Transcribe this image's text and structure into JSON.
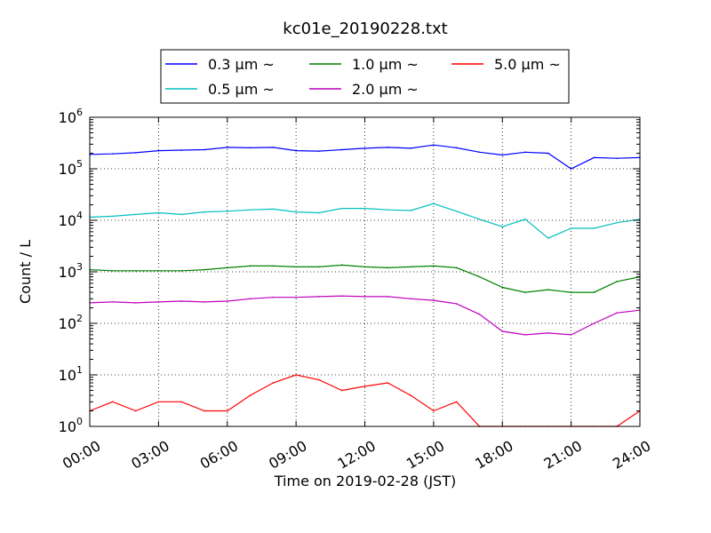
{
  "chart_data": {
    "type": "line",
    "title": "kc01e_20190228.txt",
    "xlabel": "Time on 2019-02-28 (JST)",
    "ylabel": "Count / L",
    "yscale": "log",
    "ylim": [
      1,
      1000000
    ],
    "xlim": [
      "00:00",
      "24:00"
    ],
    "grid": true,
    "legend_position": "above plot",
    "x_ticks": [
      "00:00",
      "03:00",
      "06:00",
      "09:00",
      "12:00",
      "15:00",
      "18:00",
      "21:00",
      "24:00"
    ],
    "y_ticks": [
      {
        "base": "10",
        "exp": "0"
      },
      {
        "base": "10",
        "exp": "1"
      },
      {
        "base": "10",
        "exp": "2"
      },
      {
        "base": "10",
        "exp": "3"
      },
      {
        "base": "10",
        "exp": "4"
      },
      {
        "base": "10",
        "exp": "5"
      },
      {
        "base": "10",
        "exp": "6"
      }
    ],
    "x_hours": [
      0,
      1,
      2,
      3,
      4,
      5,
      6,
      7,
      8,
      9,
      10,
      11,
      12,
      13,
      14,
      15,
      16,
      17,
      18,
      19,
      20,
      21,
      22,
      23,
      24
    ],
    "series": [
      {
        "name": "0.3 μm ~",
        "color": "#0000ff",
        "values": [
          190000,
          195000,
          205000,
          225000,
          230000,
          235000,
          260000,
          255000,
          260000,
          225000,
          220000,
          235000,
          250000,
          260000,
          250000,
          290000,
          255000,
          210000,
          185000,
          210000,
          200000,
          100000,
          165000,
          160000,
          165000
        ]
      },
      {
        "name": "0.5 μm ~",
        "color": "#00bfbf",
        "values": [
          11500,
          12000,
          13000,
          14000,
          13000,
          14500,
          15000,
          16000,
          16500,
          14500,
          14000,
          17000,
          17000,
          16000,
          15500,
          21000,
          15000,
          10500,
          7500,
          10500,
          4500,
          7000,
          7000,
          9000,
          10500
        ]
      },
      {
        "name": "1.0 μm ~",
        "color": "#008000",
        "values": [
          1100,
          1050,
          1050,
          1050,
          1050,
          1100,
          1200,
          1300,
          1300,
          1250,
          1250,
          1350,
          1250,
          1200,
          1250,
          1300,
          1200,
          800,
          500,
          400,
          450,
          400,
          400,
          650,
          800
        ]
      },
      {
        "name": "2.0 μm ~",
        "color": "#bf00bf",
        "values": [
          250,
          260,
          250,
          260,
          270,
          260,
          270,
          300,
          320,
          320,
          330,
          340,
          330,
          330,
          300,
          280,
          240,
          150,
          70,
          60,
          65,
          60,
          100,
          160,
          180
        ]
      },
      {
        "name": "5.0 μm ~",
        "color": "#ff0000",
        "values": [
          2,
          3,
          2,
          3,
          3,
          2,
          2,
          4,
          7,
          10,
          8,
          5,
          6,
          7,
          4,
          2,
          3,
          1,
          1,
          1,
          1,
          1,
          1,
          1,
          2
        ]
      }
    ]
  }
}
